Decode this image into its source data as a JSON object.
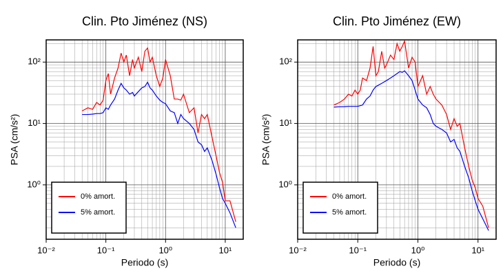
{
  "chart_data": [
    {
      "type": "line",
      "title": "Clin. Pto Jiménez (NS)",
      "x_label": "Periodo (s)",
      "y_label": "PSA (cm/s²)",
      "log_x": true,
      "log_y": true,
      "grid": true,
      "legend": "lower left",
      "xlim": [
        0.01,
        20
      ],
      "ylim": [
        0.13,
        230
      ],
      "xticks": [
        {
          "value": 0.01,
          "label": "10⁻²"
        },
        {
          "value": 0.1,
          "label": "10⁻¹"
        },
        {
          "value": 1,
          "label": "10⁰"
        },
        {
          "value": 10,
          "label": "10¹"
        }
      ],
      "yticks": [
        {
          "value": 1,
          "label": "10⁰"
        },
        {
          "value": 10,
          "label": "10¹"
        },
        {
          "value": 100,
          "label": "10²"
        }
      ],
      "x": [
        0.04,
        0.05,
        0.06,
        0.07,
        0.08,
        0.09,
        0.1,
        0.11,
        0.12,
        0.14,
        0.16,
        0.18,
        0.2,
        0.22,
        0.25,
        0.28,
        0.3,
        0.35,
        0.4,
        0.45,
        0.5,
        0.55,
        0.6,
        0.7,
        0.8,
        0.9,
        1,
        1.2,
        1.4,
        1.6,
        1.8,
        2,
        2.5,
        3,
        3.5,
        4,
        4.5,
        5,
        6,
        7,
        8,
        9,
        10,
        12,
        15
      ],
      "series": [
        {
          "name": "0% amort.",
          "color": "#ff0000",
          "values": [
            16,
            18,
            17,
            22,
            20,
            24,
            50,
            65,
            30,
            55,
            80,
            140,
            100,
            130,
            60,
            110,
            80,
            120,
            70,
            150,
            170,
            100,
            120,
            60,
            40,
            55,
            110,
            60,
            25,
            25,
            24,
            30,
            15,
            18,
            7,
            14,
            12,
            14,
            6,
            3,
            1.6,
            1.1,
            0.55,
            0.55,
            0.25
          ]
        },
        {
          "name": "5% amort.",
          "color": "#0000ff",
          "values": [
            14,
            14,
            14.2,
            14.5,
            14.5,
            15,
            18,
            17,
            20,
            25,
            35,
            45,
            38,
            35,
            30,
            32,
            28,
            33,
            38,
            40,
            47,
            38,
            35,
            28,
            24,
            22,
            21,
            16,
            15,
            10,
            14,
            12,
            10,
            8,
            5,
            4.5,
            3.5,
            4,
            2.5,
            1.5,
            0.9,
            0.6,
            0.5,
            0.35,
            0.2
          ]
        }
      ]
    },
    {
      "type": "line",
      "title": "Clin. Pto Jiménez (EW)",
      "x_label": "Periodo (s)",
      "y_label": "PSA (cm/s²)",
      "log_x": true,
      "log_y": true,
      "grid": true,
      "legend": "lower left",
      "xlim": [
        0.01,
        20
      ],
      "ylim": [
        0.13,
        230
      ],
      "xticks": [
        {
          "value": 0.01,
          "label": "10⁻²"
        },
        {
          "value": 0.1,
          "label": "10⁻¹"
        },
        {
          "value": 1,
          "label": "10⁰"
        },
        {
          "value": 10,
          "label": "10¹"
        }
      ],
      "yticks": [
        {
          "value": 1,
          "label": "10⁰"
        },
        {
          "value": 10,
          "label": "10¹"
        },
        {
          "value": 100,
          "label": "10²"
        }
      ],
      "x": [
        0.04,
        0.05,
        0.06,
        0.07,
        0.08,
        0.09,
        0.1,
        0.11,
        0.12,
        0.14,
        0.16,
        0.18,
        0.2,
        0.22,
        0.25,
        0.28,
        0.3,
        0.35,
        0.4,
        0.45,
        0.5,
        0.55,
        0.6,
        0.7,
        0.8,
        0.9,
        1,
        1.2,
        1.4,
        1.6,
        1.8,
        2,
        2.5,
        3,
        3.5,
        4,
        4.5,
        5,
        6,
        7,
        8,
        9,
        10,
        12,
        15
      ],
      "series": [
        {
          "name": "0% amort.",
          "color": "#ff0000",
          "values": [
            20,
            22,
            25,
            30,
            28,
            35,
            30,
            35,
            55,
            50,
            80,
            180,
            60,
            70,
            150,
            80,
            90,
            130,
            110,
            200,
            150,
            180,
            220,
            80,
            120,
            100,
            40,
            60,
            30,
            40,
            30,
            25,
            20,
            14,
            8,
            12,
            9,
            10,
            4,
            2,
            1.2,
            0.9,
            0.6,
            0.45,
            0.2
          ]
        },
        {
          "name": "5% amort.",
          "color": "#0000ff",
          "values": [
            18.5,
            18.7,
            18.8,
            19,
            19,
            19,
            19,
            19.5,
            20,
            25,
            28,
            35,
            40,
            42,
            45,
            48,
            50,
            55,
            60,
            65,
            70,
            68,
            72,
            60,
            50,
            35,
            25,
            20,
            18,
            14,
            10,
            9,
            8,
            7,
            5,
            5.5,
            4,
            3.5,
            2,
            1.3,
            0.8,
            0.55,
            0.4,
            0.28,
            0.18
          ]
        }
      ]
    }
  ]
}
